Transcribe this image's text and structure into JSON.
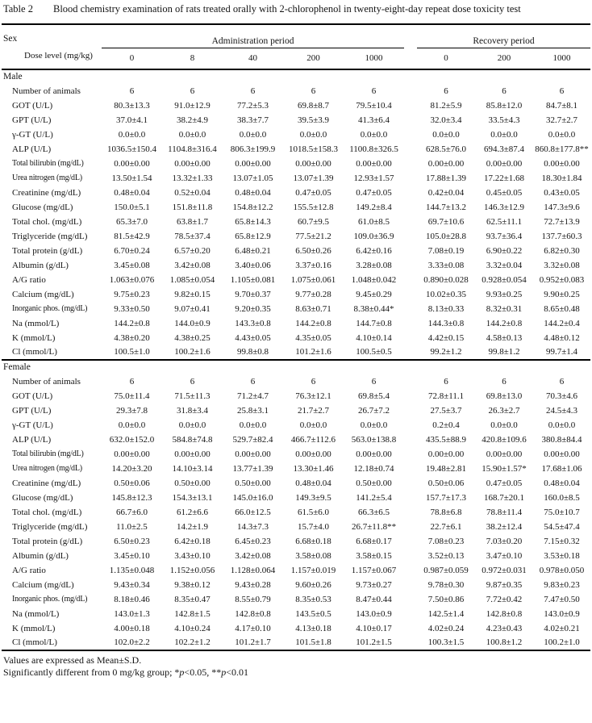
{
  "table_title": {
    "label": "Table 2",
    "text": "Blood chemistry examination of rats treated orally with 2-chlorophenol in twenty-eight-day repeat dose toxicity test"
  },
  "header": {
    "sex_label": "Sex",
    "dose_label": "Dose level (mg/kg)",
    "administration_period": "Administration period",
    "recovery_period": "Recovery period",
    "administration_doses": [
      "0",
      "8",
      "40",
      "200",
      "1000"
    ],
    "recovery_doses": [
      "0",
      "200",
      "1000"
    ]
  },
  "sections": [
    {
      "sex": "Male",
      "rows": [
        {
          "label": "Number of animals",
          "values": [
            "6",
            "6",
            "6",
            "6",
            "6",
            "6",
            "6",
            "6"
          ]
        },
        {
          "label": "GOT (U/L)",
          "values": [
            "80.3±13.3",
            "91.0±12.9",
            "77.2±5.3",
            "69.8±8.7",
            "79.5±10.4",
            "81.2±5.9",
            "85.8±12.0",
            "84.7±8.1"
          ]
        },
        {
          "label": "GPT (U/L)",
          "values": [
            "37.0±4.1",
            "38.2±4.9",
            "38.3±7.7",
            "39.5±3.9",
            "41.3±6.4",
            "32.0±3.4",
            "33.5±4.3",
            "32.7±2.7"
          ]
        },
        {
          "label": "γ-GT (U/L)",
          "values": [
            "0.0±0.0",
            "0.0±0.0",
            "0.0±0.0",
            "0.0±0.0",
            "0.0±0.0",
            "0.0±0.0",
            "0.0±0.0",
            "0.0±0.0"
          ]
        },
        {
          "label": "ALP (U/L)",
          "values": [
            "1036.5±150.4",
            "1104.8±316.4",
            "806.3±199.9",
            "1018.5±158.3",
            "1100.8±326.5",
            "628.5±76.0",
            "694.3±87.4",
            "860.8±177.8**"
          ]
        },
        {
          "label": "Total bilirubin (mg/dL)",
          "values": [
            "0.00±0.00",
            "0.00±0.00",
            "0.00±0.00",
            "0.00±0.00",
            "0.00±0.00",
            "0.00±0.00",
            "0.00±0.00",
            "0.00±0.00"
          ]
        },
        {
          "label": "Urea nitrogen (mg/dL)",
          "values": [
            "13.50±1.54",
            "13.32±1.33",
            "13.07±1.05",
            "13.07±1.39",
            "12.93±1.57",
            "17.88±1.39",
            "17.22±1.68",
            "18.30±1.84"
          ]
        },
        {
          "label": "Creatinine (mg/dL)",
          "values": [
            "0.48±0.04",
            "0.52±0.04",
            "0.48±0.04",
            "0.47±0.05",
            "0.47±0.05",
            "0.42±0.04",
            "0.45±0.05",
            "0.43±0.05"
          ]
        },
        {
          "label": "Glucose (mg/dL)",
          "values": [
            "150.0±5.1",
            "151.8±11.8",
            "154.8±12.2",
            "155.5±12.8",
            "149.2±8.4",
            "144.7±13.2",
            "146.3±12.9",
            "147.3±9.6"
          ]
        },
        {
          "label": "Total chol. (mg/dL)",
          "values": [
            "65.3±7.0",
            "63.8±1.7",
            "65.8±14.3",
            "60.7±9.5",
            "61.0±8.5",
            "69.7±10.6",
            "62.5±11.1",
            "72.7±13.9"
          ]
        },
        {
          "label": "Triglyceride (mg/dL)",
          "values": [
            "81.5±42.9",
            "78.5±37.4",
            "65.8±12.9",
            "77.5±21.2",
            "109.0±36.9",
            "105.0±28.8",
            "93.7±36.4",
            "137.7±60.3"
          ]
        },
        {
          "label": "Total protein (g/dL)",
          "values": [
            "6.70±0.24",
            "6.57±0.20",
            "6.48±0.21",
            "6.50±0.26",
            "6.42±0.16",
            "7.08±0.19",
            "6.90±0.22",
            "6.82±0.30"
          ]
        },
        {
          "label": "Albumin (g/dL)",
          "values": [
            "3.45±0.08",
            "3.42±0.08",
            "3.40±0.06",
            "3.37±0.16",
            "3.28±0.08",
            "3.33±0.08",
            "3.32±0.04",
            "3.32±0.08"
          ]
        },
        {
          "label": "A/G ratio",
          "values": [
            "1.063±0.076",
            "1.085±0.054",
            "1.105±0.081",
            "1.075±0.061",
            "1.048±0.042",
            "0.890±0.028",
            "0.928±0.054",
            "0.952±0.083"
          ]
        },
        {
          "label": "Calcium (mg/dL)",
          "values": [
            "9.75±0.23",
            "9.82±0.15",
            "9.70±0.37",
            "9.77±0.28",
            "9.45±0.29",
            "10.02±0.35",
            "9.93±0.25",
            "9.90±0.25"
          ]
        },
        {
          "label": "Inorganic phos. (mg/dL)",
          "values": [
            "9.33±0.50",
            "9.07±0.41",
            "9.20±0.35",
            "8.63±0.71",
            "8.38±0.44*",
            "8.13±0.33",
            "8.32±0.31",
            "8.65±0.48"
          ]
        },
        {
          "label": "Na (mmol/L)",
          "values": [
            "144.2±0.8",
            "144.0±0.9",
            "143.3±0.8",
            "144.2±0.8",
            "144.7±0.8",
            "144.3±0.8",
            "144.2±0.8",
            "144.2±0.4"
          ]
        },
        {
          "label": "K (mmol/L)",
          "values": [
            "4.38±0.20",
            "4.38±0.25",
            "4.43±0.05",
            "4.35±0.05",
            "4.10±0.14",
            "4.42±0.15",
            "4.58±0.13",
            "4.48±0.12"
          ]
        },
        {
          "label": "Cl (mmol/L)",
          "values": [
            "100.5±1.0",
            "100.2±1.6",
            "99.8±0.8",
            "101.2±1.6",
            "100.5±0.5",
            "99.2±1.2",
            "99.8±1.2",
            "99.7±1.4"
          ]
        }
      ]
    },
    {
      "sex": "Female",
      "rows": [
        {
          "label": "Number of animals",
          "values": [
            "6",
            "6",
            "6",
            "6",
            "6",
            "6",
            "6",
            "6"
          ]
        },
        {
          "label": "GOT (U/L)",
          "values": [
            "75.0±11.4",
            "71.5±11.3",
            "71.2±4.7",
            "76.3±12.1",
            "69.8±5.4",
            "72.8±11.1",
            "69.8±13.0",
            "70.3±4.6"
          ]
        },
        {
          "label": "GPT (U/L)",
          "values": [
            "29.3±7.8",
            "31.8±3.4",
            "25.8±3.1",
            "21.7±2.7",
            "26.7±7.2",
            "27.5±3.7",
            "26.3±2.7",
            "24.5±4.3"
          ]
        },
        {
          "label": "γ-GT (U/L)",
          "values": [
            "0.0±0.0",
            "0.0±0.0",
            "0.0±0.0",
            "0.0±0.0",
            "0.0±0.0",
            "0.2±0.4",
            "0.0±0.0",
            "0.0±0.0"
          ]
        },
        {
          "label": "ALP (U/L)",
          "values": [
            "632.0±152.0",
            "584.8±74.8",
            "529.7±82.4",
            "466.7±112.6",
            "563.0±138.8",
            "435.5±88.9",
            "420.8±109.6",
            "380.8±84.4"
          ]
        },
        {
          "label": "Total bilirubin (mg/dL)",
          "values": [
            "0.00±0.00",
            "0.00±0.00",
            "0.00±0.00",
            "0.00±0.00",
            "0.00±0.00",
            "0.00±0.00",
            "0.00±0.00",
            "0.00±0.00"
          ]
        },
        {
          "label": "Urea nitrogen (mg/dL)",
          "values": [
            "14.20±3.20",
            "14.10±3.14",
            "13.77±1.39",
            "13.30±1.46",
            "12.18±0.74",
            "19.48±2.81",
            "15.90±1.57*",
            "17.68±1.06"
          ]
        },
        {
          "label": "Creatinine (mg/dL)",
          "values": [
            "0.50±0.06",
            "0.50±0.00",
            "0.50±0.00",
            "0.48±0.04",
            "0.50±0.00",
            "0.50±0.06",
            "0.47±0.05",
            "0.48±0.04"
          ]
        },
        {
          "label": "Glucose (mg/dL)",
          "values": [
            "145.8±12.3",
            "154.3±13.1",
            "145.0±16.0",
            "149.3±9.5",
            "141.2±5.4",
            "157.7±17.3",
            "168.7±20.1",
            "160.0±8.5"
          ]
        },
        {
          "label": "Total chol. (mg/dL)",
          "values": [
            "66.7±6.0",
            "61.2±6.6",
            "66.0±12.5",
            "61.5±6.0",
            "66.3±6.5",
            "78.8±6.8",
            "78.8±11.4",
            "75.0±10.7"
          ]
        },
        {
          "label": "Triglyceride (mg/dL)",
          "values": [
            "11.0±2.5",
            "14.2±1.9",
            "14.3±7.3",
            "15.7±4.0",
            "26.7±11.8**",
            "22.7±6.1",
            "38.2±12.4",
            "54.5±47.4"
          ]
        },
        {
          "label": "Total protein (g/dL)",
          "values": [
            "6.50±0.23",
            "6.42±0.18",
            "6.45±0.23",
            "6.68±0.18",
            "6.68±0.17",
            "7.08±0.23",
            "7.03±0.20",
            "7.15±0.32"
          ]
        },
        {
          "label": "Albumin (g/dL)",
          "values": [
            "3.45±0.10",
            "3.43±0.10",
            "3.42±0.08",
            "3.58±0.08",
            "3.58±0.15",
            "3.52±0.13",
            "3.47±0.10",
            "3.53±0.18"
          ]
        },
        {
          "label": "A/G ratio",
          "values": [
            "1.135±0.048",
            "1.152±0.056",
            "1.128±0.064",
            "1.157±0.019",
            "1.157±0.067",
            "0.987±0.059",
            "0.972±0.031",
            "0.978±0.050"
          ]
        },
        {
          "label": "Calcium (mg/dL)",
          "values": [
            "9.43±0.34",
            "9.38±0.12",
            "9.43±0.28",
            "9.60±0.26",
            "9.73±0.27",
            "9.78±0.30",
            "9.87±0.35",
            "9.83±0.23"
          ]
        },
        {
          "label": "Inorganic phos. (mg/dL)",
          "values": [
            "8.18±0.46",
            "8.35±0.47",
            "8.55±0.79",
            "8.35±0.53",
            "8.47±0.44",
            "7.50±0.86",
            "7.72±0.42",
            "7.47±0.50"
          ]
        },
        {
          "label": "Na (mmol/L)",
          "values": [
            "143.0±1.3",
            "142.8±1.5",
            "142.8±0.8",
            "143.5±0.5",
            "143.0±0.9",
            "142.5±1.4",
            "142.8±0.8",
            "143.0±0.9"
          ]
        },
        {
          "label": "K (mmol/L)",
          "values": [
            "4.00±0.18",
            "4.10±0.24",
            "4.17±0.10",
            "4.13±0.18",
            "4.10±0.17",
            "4.02±0.24",
            "4.23±0.43",
            "4.02±0.21"
          ]
        },
        {
          "label": "Cl (mmol/L)",
          "values": [
            "102.0±2.2",
            "102.2±1.2",
            "101.2±1.7",
            "101.5±1.8",
            "101.2±1.5",
            "100.3±1.5",
            "100.8±1.2",
            "100.2±1.0"
          ]
        }
      ]
    }
  ],
  "footnotes": {
    "line1": "Values are expressed as Mean±S.D.",
    "line2_prefix": "Significantly different from 0 mg/kg group; *",
    "line2_p1": "p",
    "line2_mid": "<0.05, **",
    "line2_p2": "p",
    "line2_end": "<0.01"
  }
}
